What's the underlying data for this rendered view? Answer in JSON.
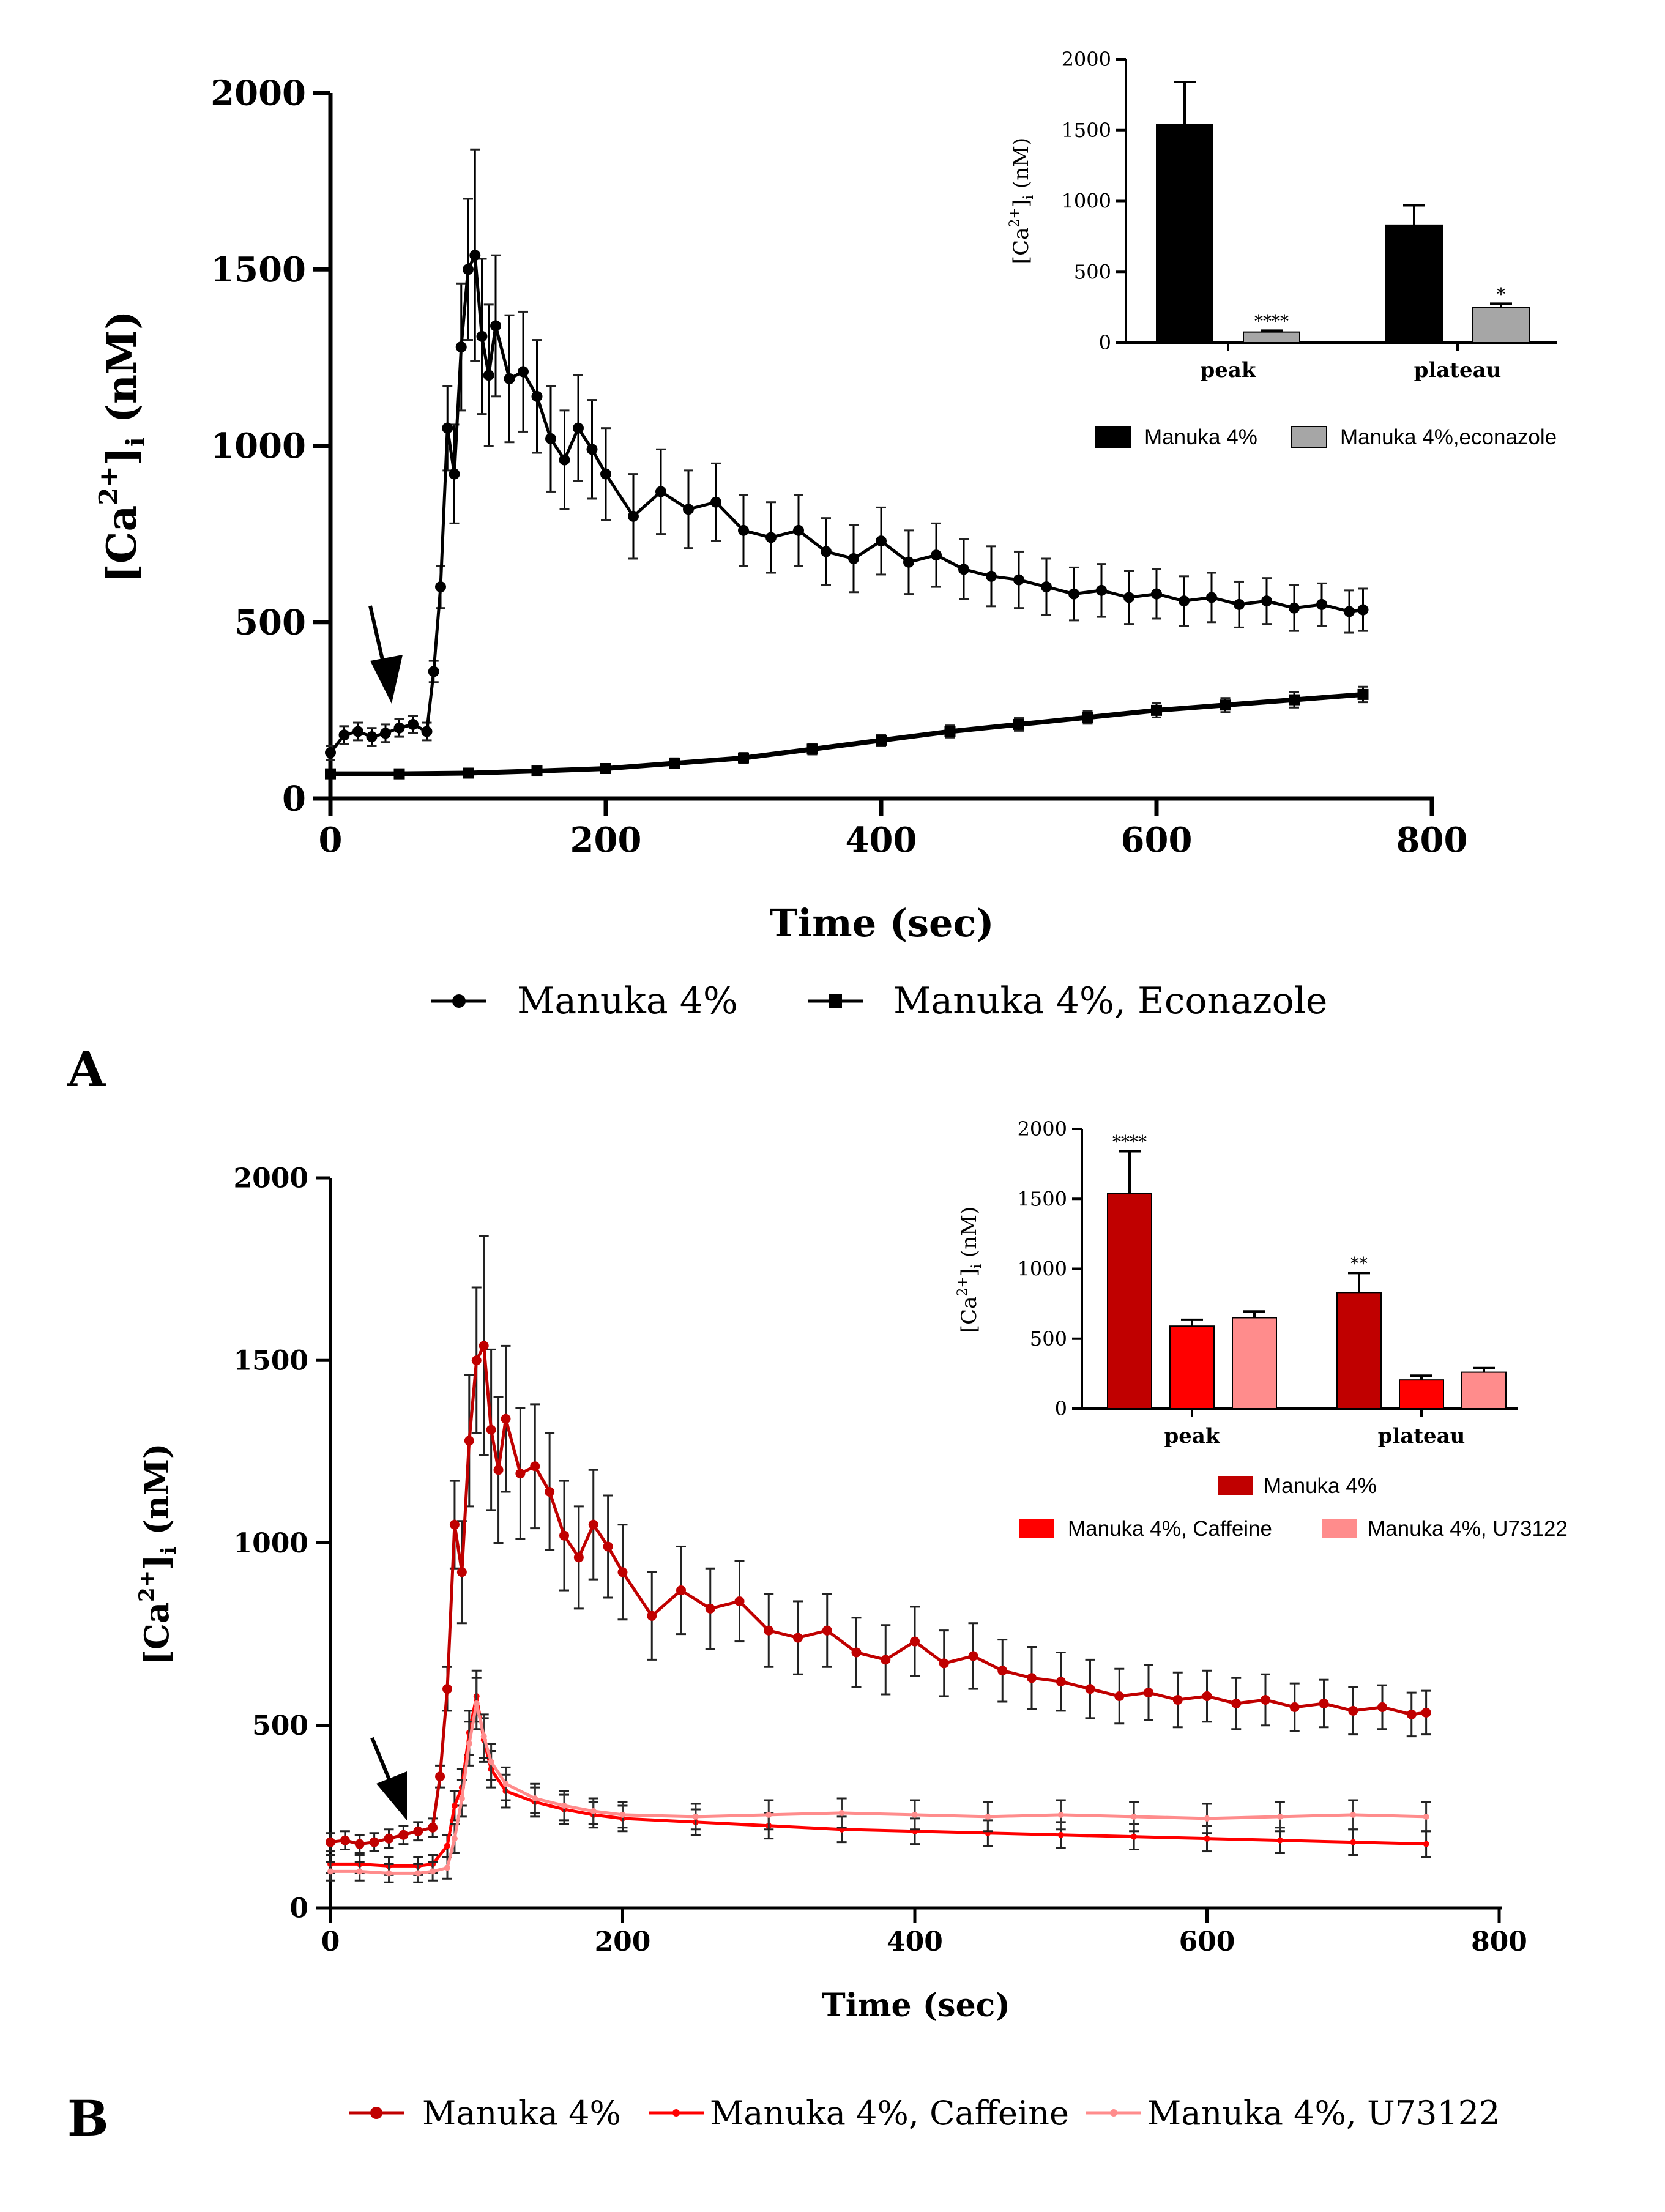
{
  "panels": {
    "A": {
      "label": "A"
    },
    "B": {
      "label": "B"
    }
  },
  "colors": {
    "black": "#000000",
    "gray_bar": "#a6a6a6",
    "dark_red": "#c00000",
    "red": "#ff0000",
    "pink": "#ff8c8c"
  },
  "chart_data": [
    {
      "id": "A-main",
      "type": "line",
      "title": "",
      "xlabel": "Time (sec)",
      "ylabel_html": "[Ca2+]i (nM)",
      "ylabel_parts": {
        "pre": "[Ca",
        "sup": "2+",
        "mid": "]",
        "sub": "i",
        "post": " (nM)"
      },
      "xlim": [
        0,
        800
      ],
      "ylim": [
        0,
        2000
      ],
      "xticks": [
        0,
        200,
        400,
        600,
        800
      ],
      "yticks": [
        0,
        500,
        1000,
        1500,
        2000
      ],
      "arrow_at_x": 40,
      "series": [
        {
          "name": "Manuka 4%",
          "marker": "circle",
          "color": "#000000",
          "x": [
            0,
            10,
            20,
            30,
            40,
            50,
            60,
            70,
            75,
            80,
            85,
            90,
            95,
            100,
            105,
            110,
            115,
            120,
            130,
            140,
            150,
            160,
            170,
            180,
            190,
            200,
            220,
            240,
            260,
            280,
            300,
            320,
            340,
            360,
            380,
            400,
            420,
            440,
            460,
            480,
            500,
            520,
            540,
            560,
            580,
            600,
            620,
            640,
            660,
            680,
            700,
            720,
            740,
            750
          ],
          "y": [
            130,
            180,
            190,
            175,
            185,
            200,
            210,
            190,
            360,
            600,
            1050,
            920,
            1280,
            1500,
            1540,
            1310,
            1200,
            1340,
            1190,
            1210,
            1140,
            1020,
            960,
            1050,
            990,
            920,
            800,
            870,
            820,
            840,
            760,
            740,
            760,
            700,
            680,
            730,
            670,
            690,
            650,
            630,
            620,
            600,
            580,
            590,
            570,
            580,
            560,
            570,
            550,
            560,
            540,
            550,
            530,
            535
          ],
          "err": [
            20,
            25,
            25,
            25,
            25,
            25,
            25,
            25,
            30,
            60,
            120,
            140,
            180,
            200,
            300,
            220,
            200,
            200,
            180,
            170,
            160,
            150,
            140,
            150,
            140,
            130,
            120,
            120,
            110,
            110,
            100,
            100,
            100,
            95,
            95,
            95,
            90,
            90,
            85,
            85,
            80,
            80,
            75,
            75,
            75,
            70,
            70,
            70,
            65,
            65,
            65,
            60,
            60,
            60
          ]
        },
        {
          "name": "Manuka 4%, Econazole",
          "marker": "square",
          "color": "#000000",
          "x": [
            0,
            50,
            100,
            150,
            200,
            250,
            300,
            350,
            400,
            450,
            500,
            550,
            600,
            650,
            700,
            750
          ],
          "y": [
            70,
            70,
            72,
            78,
            85,
            100,
            115,
            140,
            165,
            190,
            210,
            230,
            250,
            265,
            280,
            295
          ],
          "err": [
            12,
            12,
            12,
            12,
            12,
            14,
            14,
            15,
            16,
            17,
            18,
            18,
            20,
            20,
            22,
            22
          ]
        }
      ]
    },
    {
      "id": "A-inset",
      "type": "bar",
      "ylabel_parts": {
        "pre": "[Ca",
        "sup": "2+",
        "mid": "]",
        "sub": "i",
        "post": " (nM)"
      },
      "categories": [
        "peak",
        "plateau"
      ],
      "ylim": [
        0,
        2000
      ],
      "yticks": [
        0,
        500,
        1000,
        1500,
        2000
      ],
      "series": [
        {
          "name": "Manuka 4%",
          "color": "#000000",
          "values": [
            1540,
            830
          ],
          "err": [
            300,
            140
          ],
          "stars": [
            "",
            ""
          ]
        },
        {
          "name": "Manuka 4%,econazole",
          "color": "#a6a6a6",
          "values": [
            75,
            250
          ],
          "err": [
            10,
            25
          ],
          "stars": [
            "****",
            "*"
          ]
        }
      ]
    },
    {
      "id": "B-main",
      "type": "line",
      "title": "",
      "xlabel": "Time (sec)",
      "ylabel_parts": {
        "pre": "[Ca",
        "sup": "2+",
        "mid": "]",
        "sub": "i",
        "post": " (nM)"
      },
      "xlim": [
        0,
        800
      ],
      "ylim": [
        0,
        2000
      ],
      "xticks": [
        0,
        200,
        400,
        600,
        800
      ],
      "yticks": [
        0,
        500,
        1000,
        1500,
        2000
      ],
      "arrow_at_x": 50,
      "series": [
        {
          "name": "Manuka 4%",
          "marker": "circle",
          "color": "#c00000",
          "x": [
            0,
            10,
            20,
            30,
            40,
            50,
            60,
            70,
            75,
            80,
            85,
            90,
            95,
            100,
            105,
            110,
            115,
            120,
            130,
            140,
            150,
            160,
            170,
            180,
            190,
            200,
            220,
            240,
            260,
            280,
            300,
            320,
            340,
            360,
            380,
            400,
            420,
            440,
            460,
            480,
            500,
            520,
            540,
            560,
            580,
            600,
            620,
            640,
            660,
            680,
            700,
            720,
            740,
            750
          ],
          "y": [
            180,
            185,
            175,
            180,
            190,
            200,
            210,
            220,
            360,
            600,
            1050,
            920,
            1280,
            1500,
            1540,
            1310,
            1200,
            1340,
            1190,
            1210,
            1140,
            1020,
            960,
            1050,
            990,
            920,
            800,
            870,
            820,
            840,
            760,
            740,
            760,
            700,
            680,
            730,
            670,
            690,
            650,
            630,
            620,
            600,
            580,
            590,
            570,
            580,
            560,
            570,
            550,
            560,
            540,
            550,
            530,
            535
          ],
          "err": [
            25,
            25,
            25,
            25,
            25,
            25,
            25,
            25,
            30,
            60,
            120,
            140,
            180,
            200,
            300,
            220,
            200,
            200,
            180,
            170,
            160,
            150,
            140,
            150,
            140,
            130,
            120,
            120,
            110,
            110,
            100,
            100,
            100,
            95,
            95,
            95,
            90,
            90,
            85,
            85,
            80,
            80,
            75,
            75,
            75,
            70,
            70,
            70,
            65,
            65,
            65,
            60,
            60,
            60
          ]
        },
        {
          "name": "Manuka 4%, Caffeine",
          "marker": "dot",
          "color": "#ff0000",
          "x": [
            0,
            20,
            40,
            60,
            70,
            80,
            85,
            90,
            95,
            100,
            105,
            110,
            120,
            140,
            160,
            180,
            200,
            250,
            300,
            350,
            400,
            450,
            500,
            550,
            600,
            650,
            700,
            750
          ],
          "y": [
            120,
            120,
            115,
            115,
            120,
            170,
            280,
            330,
            480,
            580,
            460,
            380,
            320,
            290,
            270,
            255,
            245,
            235,
            225,
            215,
            210,
            205,
            200,
            195,
            190,
            185,
            180,
            175
          ],
          "err": [
            25,
            25,
            25,
            25,
            25,
            30,
            40,
            50,
            60,
            70,
            60,
            50,
            45,
            40,
            40,
            35,
            35,
            35,
            35,
            35,
            35,
            35,
            35,
            35,
            35,
            35,
            35,
            35
          ]
        },
        {
          "name": "Manuka 4%, U73122",
          "marker": "dot",
          "color": "#ff8c8c",
          "x": [
            0,
            20,
            40,
            60,
            70,
            80,
            85,
            90,
            95,
            100,
            105,
            110,
            120,
            140,
            160,
            180,
            200,
            250,
            300,
            350,
            400,
            450,
            500,
            550,
            600,
            650,
            700,
            750
          ],
          "y": [
            100,
            100,
            95,
            95,
            100,
            110,
            190,
            300,
            450,
            560,
            470,
            400,
            340,
            300,
            280,
            265,
            255,
            250,
            255,
            260,
            255,
            250,
            255,
            250,
            245,
            250,
            255,
            250
          ],
          "err": [
            25,
            25,
            25,
            25,
            25,
            30,
            40,
            50,
            60,
            70,
            60,
            50,
            45,
            40,
            40,
            35,
            35,
            35,
            40,
            40,
            40,
            40,
            40,
            40,
            40,
            40,
            40,
            40
          ]
        }
      ]
    },
    {
      "id": "B-inset",
      "type": "bar",
      "ylabel_parts": {
        "pre": "[Ca",
        "sup": "2+",
        "mid": "]",
        "sub": "i",
        "post": " (nM)"
      },
      "categories": [
        "peak",
        "plateau"
      ],
      "ylim": [
        0,
        2000
      ],
      "yticks": [
        0,
        500,
        1000,
        1500,
        2000
      ],
      "series": [
        {
          "name": "Manuka 4%",
          "color": "#c00000",
          "values": [
            1540,
            830
          ],
          "err": [
            300,
            140
          ],
          "stars": [
            "****",
            "**"
          ]
        },
        {
          "name": "Manuka 4%, Caffeine",
          "color": "#ff0000",
          "values": [
            590,
            205
          ],
          "err": [
            45,
            30
          ],
          "stars": [
            "",
            ""
          ]
        },
        {
          "name": "Manuka 4%, U73122",
          "color": "#ff8c8c",
          "values": [
            650,
            260
          ],
          "err": [
            45,
            30
          ],
          "stars": [
            "",
            ""
          ]
        }
      ]
    }
  ]
}
